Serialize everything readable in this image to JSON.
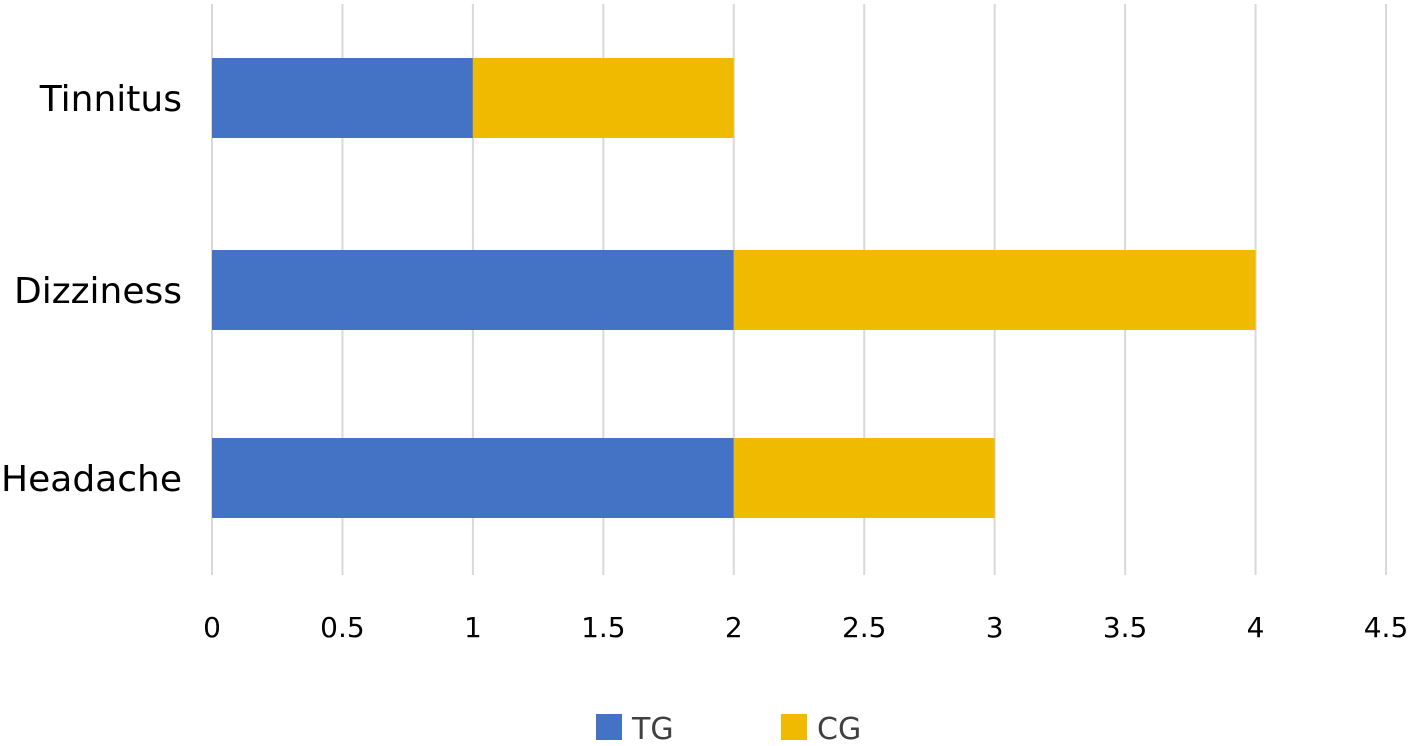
{
  "chart_data": {
    "type": "bar",
    "orientation": "horizontal",
    "stacked": true,
    "categories": [
      "Headache",
      "Dizziness",
      "Tinnitus"
    ],
    "series": [
      {
        "name": "TG",
        "values": [
          2,
          2,
          1
        ],
        "color": "#4472C4"
      },
      {
        "name": "CG",
        "values": [
          1,
          2,
          1
        ],
        "color": "#F0BA00"
      }
    ],
    "xlim": [
      0,
      4.5
    ],
    "xticks": [
      "0",
      "0.5",
      "1",
      "1.5",
      "2",
      "2.5",
      "3",
      "3.5",
      "4",
      "4.5"
    ],
    "title": "",
    "xlabel": "",
    "ylabel": "",
    "grid": "vertical",
    "legend_position": "bottom-center"
  }
}
